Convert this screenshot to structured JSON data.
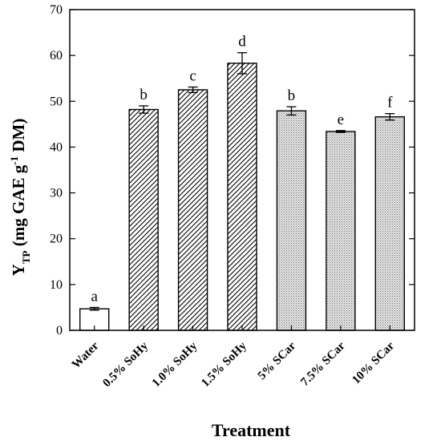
{
  "chart_data": {
    "type": "bar",
    "title": "",
    "xlabel": "Treatment",
    "ylabel": {
      "base": "Y",
      "subscript": "TP",
      "before_superscript": " (mg GAE g",
      "superscript": "-1",
      "after_superscript": " DM)"
    },
    "ylim": [
      0,
      70
    ],
    "yticks": [
      "0",
      "10",
      "20",
      "30",
      "40",
      "50",
      "60",
      "70"
    ],
    "categories": [
      "Water",
      "0.5% SoHy",
      "1.0% SoHy",
      "1.5% SoHy",
      "5% SCar",
      "7.5% SCar",
      "10% SCar"
    ],
    "values": [
      4.7,
      48.2,
      52.5,
      58.3,
      47.9,
      43.4,
      46.6
    ],
    "errors": [
      0.3,
      0.8,
      0.6,
      2.3,
      0.9,
      0.2,
      0.7
    ],
    "significance_letters": [
      "a",
      "b",
      "c",
      "d",
      "b",
      "e",
      "f"
    ],
    "fill_patterns": [
      "none",
      "hatch",
      "hatch",
      "hatch",
      "dots",
      "dots",
      "dots"
    ],
    "colors": {
      "bar_edge": "#000000",
      "dots_fill": "#d9d9d9",
      "hatch": "#000000"
    },
    "grid": false,
    "legend": "none"
  }
}
